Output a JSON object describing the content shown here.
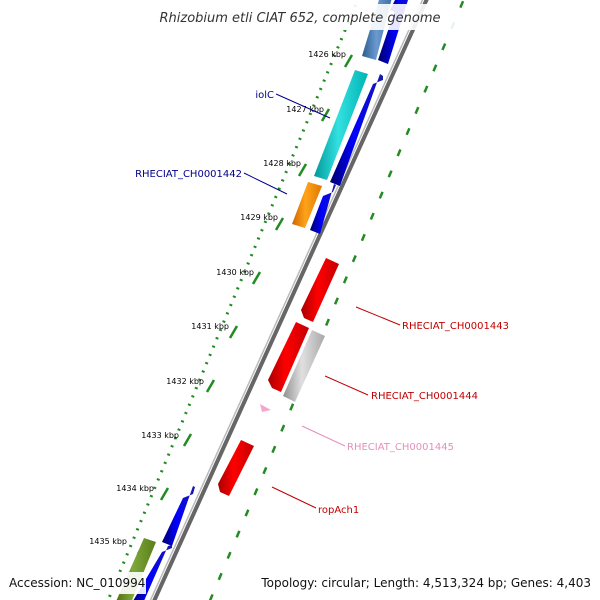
{
  "title": "Rhizobium etli CIAT 652, complete genome",
  "accession": "Accession: NC_010994",
  "summary": "Topology: circular; Length: 4,513,324 bp; Genes: 4,403",
  "ticks": [
    {
      "label": "1426 kbp"
    },
    {
      "label": "1427 kbp"
    },
    {
      "label": "1428 kbp"
    },
    {
      "label": "1429 kbp"
    },
    {
      "label": "1430 kbp"
    },
    {
      "label": "1431 kbp"
    },
    {
      "label": "1432 kbp"
    },
    {
      "label": "1433 kbp"
    },
    {
      "label": "1434 kbp"
    },
    {
      "label": "1435 kbp"
    }
  ],
  "gene_labels": [
    {
      "label": "iolC",
      "color": "#00008b"
    },
    {
      "label": "RHECIAT_CH0001442",
      "color": "#00008b"
    },
    {
      "label": "RHECIAT_CH0001443",
      "color": "#c00000"
    },
    {
      "label": "RHECIAT_CH0001444",
      "color": "#c00000"
    },
    {
      "label": "RHECIAT_CH0001445",
      "color": "#e58fbd"
    },
    {
      "label": "ropAch1",
      "color": "#c00000"
    }
  ],
  "feature_colors": {
    "forward_cds": "#0000ee",
    "reverse_cds": "#ee0000",
    "teal": "#00cccc",
    "orange": "#ff8c00",
    "olive": "#6b8e23",
    "steel": "#4a7ab0",
    "grey": "#bbbbbb",
    "pink": "#f4a6d0",
    "backbone": "#888888",
    "tick_green": "#228b22"
  }
}
